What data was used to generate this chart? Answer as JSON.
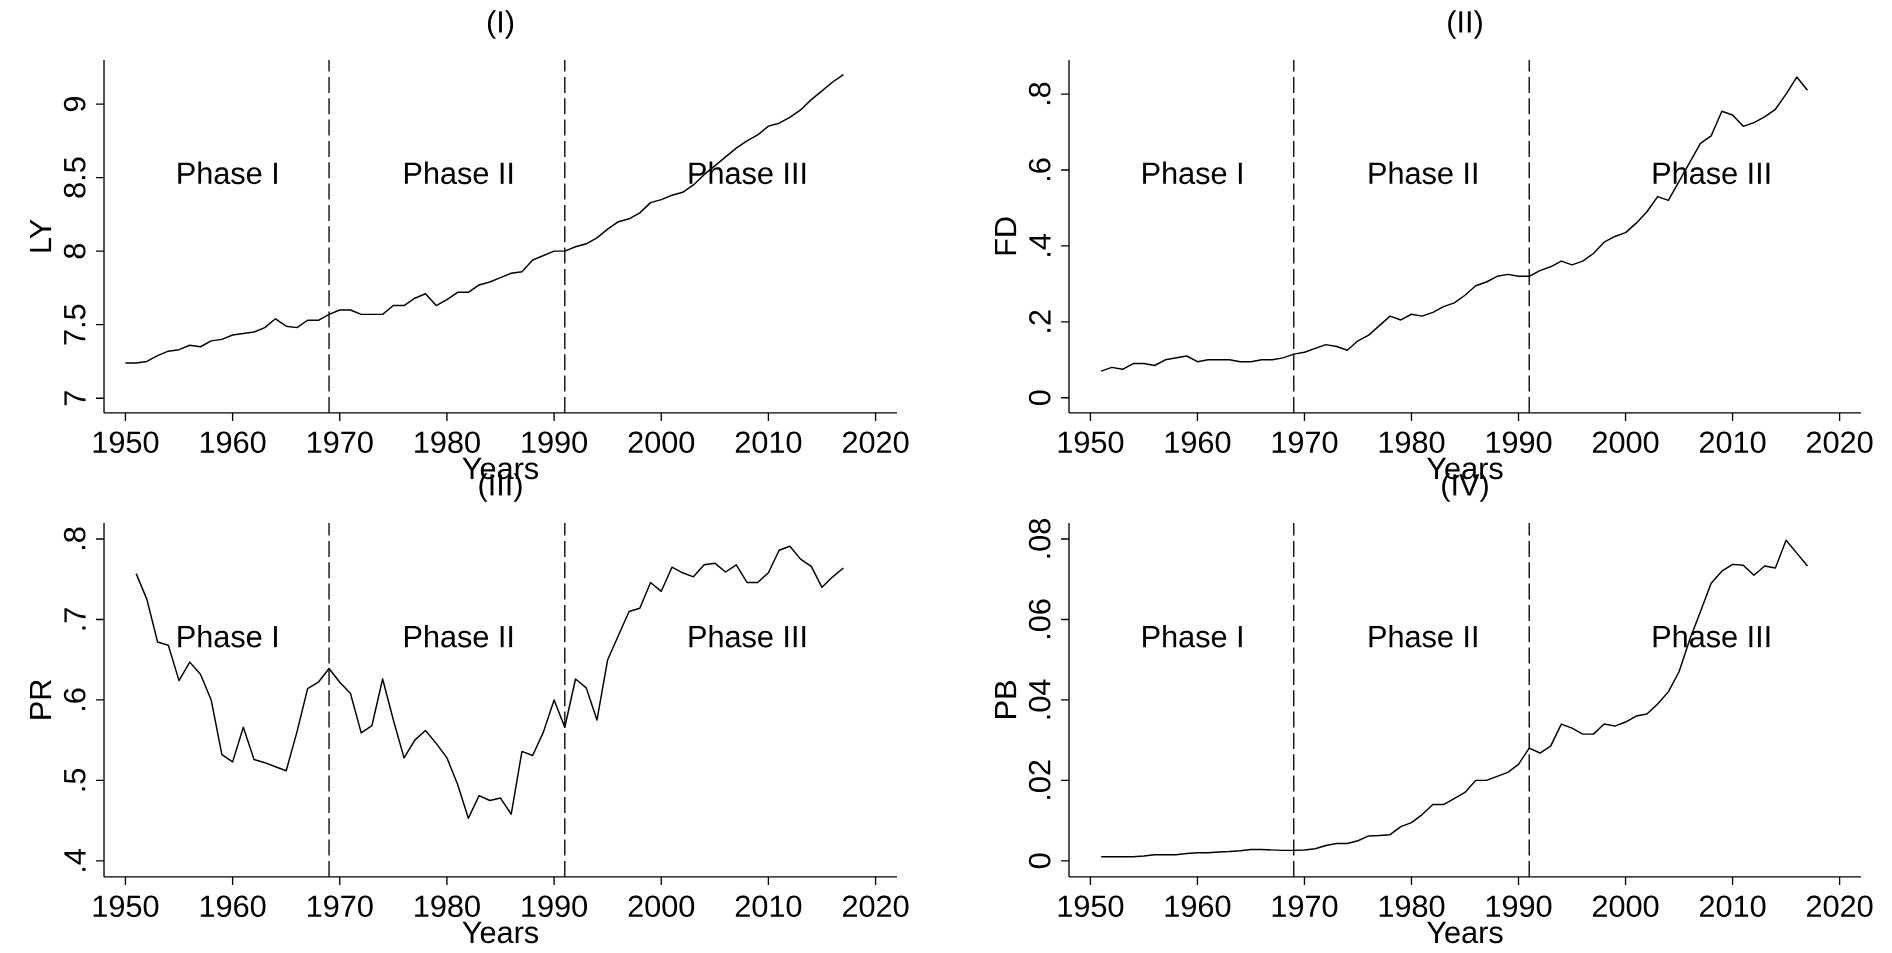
{
  "chart_data": [
    {
      "type": "line",
      "title": "(I)",
      "xlabel": "Years",
      "ylabel": "LY",
      "color": "#000000",
      "x": [
        1950,
        1951,
        1952,
        1953,
        1954,
        1955,
        1956,
        1957,
        1958,
        1959,
        1960,
        1961,
        1962,
        1963,
        1964,
        1965,
        1966,
        1967,
        1968,
        1969,
        1970,
        1971,
        1972,
        1973,
        1974,
        1975,
        1976,
        1977,
        1978,
        1979,
        1980,
        1981,
        1982,
        1983,
        1984,
        1985,
        1986,
        1987,
        1988,
        1989,
        1990,
        1991,
        1992,
        1993,
        1994,
        1995,
        1996,
        1997,
        1998,
        1999,
        2000,
        2001,
        2002,
        2003,
        2004,
        2005,
        2006,
        2007,
        2008,
        2009,
        2010,
        2011,
        2012,
        2013,
        2014,
        2015,
        2016,
        2017
      ],
      "values": [
        7.24,
        7.24,
        7.25,
        7.29,
        7.32,
        7.33,
        7.36,
        7.35,
        7.39,
        7.4,
        7.43,
        7.44,
        7.45,
        7.48,
        7.54,
        7.49,
        7.48,
        7.53,
        7.53,
        7.57,
        7.6,
        7.6,
        7.57,
        7.57,
        7.57,
        7.63,
        7.63,
        7.68,
        7.71,
        7.63,
        7.67,
        7.72,
        7.72,
        7.77,
        7.79,
        7.82,
        7.85,
        7.86,
        7.94,
        7.97,
        8.0,
        8.0,
        8.03,
        8.05,
        8.09,
        8.15,
        8.2,
        8.22,
        8.26,
        8.33,
        8.35,
        8.38,
        8.4,
        8.45,
        8.52,
        8.58,
        8.64,
        8.7,
        8.75,
        8.79,
        8.85,
        8.87,
        8.91,
        8.96,
        9.03,
        9.09,
        9.15,
        9.2
      ],
      "xlim": [
        1948,
        2022
      ],
      "xticks": [
        1950,
        1960,
        1970,
        1980,
        1990,
        2000,
        2010,
        2020
      ],
      "ylim": [
        6.9,
        9.3
      ],
      "yticks": [
        7,
        7.5,
        8,
        8.5,
        9
      ],
      "ref_lines": [
        {
          "axis": "x",
          "value": 1969,
          "color": "#000000",
          "line_style": "dashed"
        },
        {
          "axis": "x",
          "value": 1991,
          "color": "#000000",
          "line_style": "dashed"
        }
      ],
      "annotations": [
        "Phase I",
        "Phase II",
        "Phase III"
      ]
    },
    {
      "type": "line",
      "title": "(II)",
      "xlabel": "Years",
      "ylabel": "FD",
      "color": "#000000",
      "x": [
        1951,
        1952,
        1953,
        1954,
        1955,
        1956,
        1957,
        1958,
        1959,
        1960,
        1961,
        1962,
        1963,
        1964,
        1965,
        1966,
        1967,
        1968,
        1969,
        1970,
        1971,
        1972,
        1973,
        1974,
        1975,
        1976,
        1977,
        1978,
        1979,
        1980,
        1981,
        1982,
        1983,
        1984,
        1985,
        1986,
        1987,
        1988,
        1989,
        1990,
        1991,
        1992,
        1993,
        1994,
        1995,
        1996,
        1997,
        1998,
        1999,
        2000,
        2001,
        2002,
        2003,
        2004,
        2005,
        2006,
        2007,
        2008,
        2009,
        2010,
        2011,
        2012,
        2013,
        2014,
        2015,
        2016,
        2017
      ],
      "values": [
        0.07,
        0.08,
        0.075,
        0.09,
        0.09,
        0.085,
        0.1,
        0.105,
        0.11,
        0.095,
        0.1,
        0.1,
        0.1,
        0.095,
        0.095,
        0.1,
        0.1,
        0.105,
        0.115,
        0.12,
        0.13,
        0.14,
        0.135,
        0.125,
        0.15,
        0.165,
        0.19,
        0.215,
        0.205,
        0.22,
        0.215,
        0.225,
        0.24,
        0.25,
        0.27,
        0.295,
        0.305,
        0.32,
        0.325,
        0.32,
        0.32,
        0.335,
        0.345,
        0.36,
        0.35,
        0.36,
        0.38,
        0.41,
        0.425,
        0.435,
        0.46,
        0.49,
        0.53,
        0.52,
        0.57,
        0.62,
        0.67,
        0.69,
        0.755,
        0.745,
        0.715,
        0.725,
        0.74,
        0.76,
        0.8,
        0.845,
        0.81
      ],
      "xlim": [
        1948,
        2022
      ],
      "xticks": [
        1950,
        1960,
        1970,
        1980,
        1990,
        2000,
        2010,
        2020
      ],
      "ylim": [
        -0.04,
        0.89
      ],
      "yticks": [
        0,
        {
          "value": 0.2,
          "label": ".2"
        },
        {
          "value": 0.4,
          "label": ".4"
        },
        {
          "value": 0.6,
          "label": ".6"
        },
        {
          "value": 0.8,
          "label": ".8"
        }
      ],
      "ref_lines": [
        {
          "axis": "x",
          "value": 1969,
          "color": "#000000",
          "line_style": "dashed"
        },
        {
          "axis": "x",
          "value": 1991,
          "color": "#000000",
          "line_style": "dashed"
        }
      ],
      "annotations": [
        "Phase I",
        "Phase II",
        "Phase III"
      ]
    },
    {
      "type": "line",
      "title": "(III)",
      "xlabel": "Years",
      "ylabel": "PR",
      "color": "#000000",
      "x": [
        1951,
        1952,
        1953,
        1954,
        1955,
        1956,
        1957,
        1958,
        1959,
        1960,
        1961,
        1962,
        1963,
        1964,
        1965,
        1966,
        1967,
        1968,
        1969,
        1970,
        1971,
        1972,
        1973,
        1974,
        1975,
        1976,
        1977,
        1978,
        1979,
        1980,
        1981,
        1982,
        1983,
        1984,
        1985,
        1986,
        1987,
        1988,
        1989,
        1990,
        1991,
        1992,
        1993,
        1994,
        1995,
        1996,
        1997,
        1998,
        1999,
        2000,
        2001,
        2002,
        2003,
        2004,
        2005,
        2006,
        2007,
        2008,
        2009,
        2010,
        2011,
        2012,
        2013,
        2014,
        2015,
        2016,
        2017
      ],
      "values": [
        0.757,
        0.725,
        0.672,
        0.668,
        0.624,
        0.647,
        0.632,
        0.6,
        0.532,
        0.523,
        0.566,
        0.526,
        0.522,
        0.517,
        0.512,
        0.56,
        0.614,
        0.622,
        0.639,
        0.622,
        0.608,
        0.559,
        0.568,
        0.626,
        0.575,
        0.528,
        0.55,
        0.562,
        0.546,
        0.528,
        0.495,
        0.453,
        0.481,
        0.475,
        0.478,
        0.458,
        0.536,
        0.531,
        0.56,
        0.6,
        0.566,
        0.626,
        0.615,
        0.575,
        0.65,
        0.68,
        0.71,
        0.714,
        0.746,
        0.735,
        0.765,
        0.758,
        0.753,
        0.768,
        0.77,
        0.759,
        0.768,
        0.746,
        0.746,
        0.758,
        0.786,
        0.791,
        0.775,
        0.766,
        0.74,
        0.753,
        0.764
      ],
      "xlim": [
        1948,
        2022
      ],
      "xticks": [
        1950,
        1960,
        1970,
        1980,
        1990,
        2000,
        2010,
        2020
      ],
      "ylim": [
        0.38,
        0.82
      ],
      "yticks": [
        {
          "value": 0.4,
          "label": ".4"
        },
        {
          "value": 0.5,
          "label": ".5"
        },
        {
          "value": 0.6,
          "label": ".6"
        },
        {
          "value": 0.7,
          "label": ".7"
        },
        {
          "value": 0.8,
          "label": ".8"
        }
      ],
      "ref_lines": [
        {
          "axis": "x",
          "value": 1969,
          "color": "#000000",
          "line_style": "dashed"
        },
        {
          "axis": "x",
          "value": 1991,
          "color": "#000000",
          "line_style": "dashed"
        }
      ],
      "annotations": [
        "Phase I",
        "Phase II",
        "Phase III"
      ]
    },
    {
      "type": "line",
      "title": "(IV)",
      "xlabel": "Years",
      "ylabel": "PB",
      "color": "#000000",
      "x": [
        1951,
        1952,
        1953,
        1954,
        1955,
        1956,
        1957,
        1958,
        1959,
        1960,
        1961,
        1962,
        1963,
        1964,
        1965,
        1966,
        1967,
        1968,
        1969,
        1970,
        1971,
        1972,
        1973,
        1974,
        1975,
        1976,
        1977,
        1978,
        1979,
        1980,
        1981,
        1982,
        1983,
        1984,
        1985,
        1986,
        1987,
        1988,
        1989,
        1990,
        1991,
        1992,
        1993,
        1994,
        1995,
        1996,
        1997,
        1998,
        1999,
        2000,
        2001,
        2002,
        2003,
        2004,
        2005,
        2006,
        2007,
        2008,
        2009,
        2010,
        2011,
        2012,
        2013,
        2014,
        2015,
        2016,
        2017
      ],
      "values": [
        0.001,
        0.001,
        0.001,
        0.001,
        0.0012,
        0.0015,
        0.0015,
        0.0015,
        0.0018,
        0.002,
        0.002,
        0.0022,
        0.0023,
        0.0025,
        0.0028,
        0.0028,
        0.0027,
        0.0026,
        0.0026,
        0.0027,
        0.003,
        0.0038,
        0.0043,
        0.0043,
        0.005,
        0.0062,
        0.0063,
        0.0065,
        0.0085,
        0.0095,
        0.0115,
        0.014,
        0.014,
        0.0155,
        0.017,
        0.02,
        0.02,
        0.021,
        0.022,
        0.024,
        0.028,
        0.0268,
        0.0285,
        0.034,
        0.033,
        0.0315,
        0.0315,
        0.034,
        0.0335,
        0.0345,
        0.036,
        0.0365,
        0.039,
        0.042,
        0.047,
        0.055,
        0.062,
        0.069,
        0.072,
        0.0737,
        0.0735,
        0.071,
        0.0733,
        0.0728,
        0.0797,
        0.0765,
        0.0733
      ],
      "xlim": [
        1948,
        2022
      ],
      "xticks": [
        1950,
        1960,
        1970,
        1980,
        1990,
        2000,
        2010,
        2020
      ],
      "ylim": [
        -0.004,
        0.084
      ],
      "yticks": [
        0,
        {
          "value": 0.02,
          "label": ".02"
        },
        {
          "value": 0.04,
          "label": ".04"
        },
        {
          "value": 0.06,
          "label": ".06"
        },
        {
          "value": 0.08,
          "label": ".08"
        }
      ],
      "ref_lines": [
        {
          "axis": "x",
          "value": 1969,
          "color": "#000000",
          "line_style": "dashed"
        },
        {
          "axis": "x",
          "value": 1991,
          "color": "#000000",
          "line_style": "dashed"
        }
      ],
      "annotations": [
        "Phase I",
        "Phase II",
        "Phase III"
      ]
    }
  ]
}
